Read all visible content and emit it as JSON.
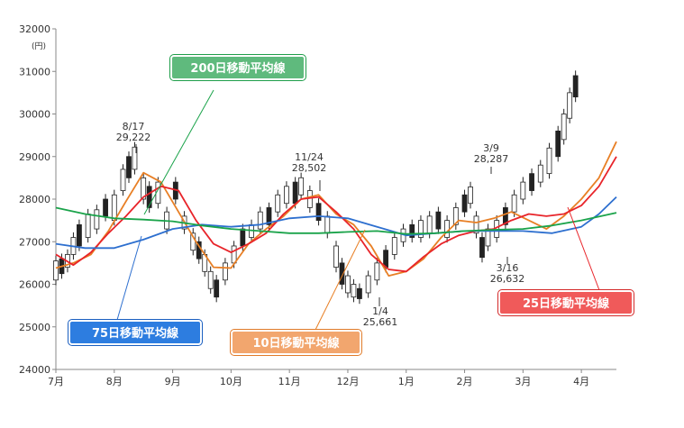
{
  "chart_data": {
    "type": "candlestick",
    "unit_label": "(円)",
    "ylim": [
      24000,
      32000
    ],
    "y_ticks": [
      "32000",
      "31000",
      "30000",
      "29000",
      "28000",
      "27000",
      "26000",
      "25000",
      "24000"
    ],
    "x_months": [
      "7月",
      "8月",
      "9月",
      "10月",
      "11月",
      "12月",
      "1月",
      "2月",
      "3月",
      "4月"
    ],
    "annotations": [
      {
        "date": "8/17",
        "value": "29,222"
      },
      {
        "date": "11/24",
        "value": "28,502"
      },
      {
        "date": "1/4",
        "value": "25,661"
      },
      {
        "date": "3/9",
        "value": "28,287"
      },
      {
        "date": "3/16",
        "value": "26,632"
      }
    ],
    "series": [
      {
        "name": "10日移動平均線",
        "color": "#e87f25",
        "values": [
          [
            0,
            26380
          ],
          [
            0.3,
            26500
          ],
          [
            0.6,
            26700
          ],
          [
            0.9,
            27250
          ],
          [
            1.2,
            27950
          ],
          [
            1.5,
            28620
          ],
          [
            1.8,
            28400
          ],
          [
            2.1,
            27700
          ],
          [
            2.4,
            27000
          ],
          [
            2.7,
            26400
          ],
          [
            3.0,
            26380
          ],
          [
            3.3,
            26950
          ],
          [
            3.6,
            27300
          ],
          [
            3.9,
            27600
          ],
          [
            4.2,
            28000
          ],
          [
            4.5,
            28100
          ],
          [
            4.8,
            27650
          ],
          [
            5.1,
            27400
          ],
          [
            5.4,
            26900
          ],
          [
            5.7,
            26200
          ],
          [
            6.0,
            26300
          ],
          [
            6.3,
            26600
          ],
          [
            6.6,
            27100
          ],
          [
            6.9,
            27500
          ],
          [
            7.2,
            27450
          ],
          [
            7.5,
            27550
          ],
          [
            7.8,
            27700
          ],
          [
            8.1,
            27500
          ],
          [
            8.4,
            27300
          ],
          [
            8.7,
            27600
          ],
          [
            9.0,
            28000
          ],
          [
            9.3,
            28500
          ],
          [
            9.6,
            29350
          ]
        ]
      },
      {
        "name": "25日移動平均線",
        "color": "#e8242a",
        "values": [
          [
            0,
            26700
          ],
          [
            0.3,
            26450
          ],
          [
            0.6,
            26750
          ],
          [
            0.9,
            27200
          ],
          [
            1.2,
            27600
          ],
          [
            1.5,
            28050
          ],
          [
            1.8,
            28300
          ],
          [
            2.1,
            28200
          ],
          [
            2.4,
            27500
          ],
          [
            2.7,
            26950
          ],
          [
            3.0,
            26750
          ],
          [
            3.3,
            26950
          ],
          [
            3.6,
            27200
          ],
          [
            3.9,
            27650
          ],
          [
            4.2,
            28000
          ],
          [
            4.5,
            28050
          ],
          [
            4.8,
            27700
          ],
          [
            5.1,
            27300
          ],
          [
            5.4,
            26700
          ],
          [
            5.7,
            26350
          ],
          [
            6.0,
            26300
          ],
          [
            6.3,
            26650
          ],
          [
            6.6,
            26950
          ],
          [
            6.9,
            27150
          ],
          [
            7.2,
            27250
          ],
          [
            7.5,
            27300
          ],
          [
            7.8,
            27500
          ],
          [
            8.1,
            27650
          ],
          [
            8.4,
            27600
          ],
          [
            8.7,
            27650
          ],
          [
            9.0,
            27850
          ],
          [
            9.3,
            28300
          ],
          [
            9.6,
            29000
          ]
        ]
      },
      {
        "name": "75日移動平均線",
        "color": "#2d6fcf",
        "values": [
          [
            0,
            26950
          ],
          [
            0.5,
            26850
          ],
          [
            1.0,
            26850
          ],
          [
            1.5,
            27050
          ],
          [
            2.0,
            27300
          ],
          [
            2.5,
            27400
          ],
          [
            3.0,
            27350
          ],
          [
            3.5,
            27400
          ],
          [
            4.0,
            27550
          ],
          [
            4.5,
            27600
          ],
          [
            5.0,
            27550
          ],
          [
            5.5,
            27350
          ],
          [
            6.0,
            27150
          ],
          [
            6.5,
            27200
          ],
          [
            7.0,
            27250
          ],
          [
            7.5,
            27250
          ],
          [
            8.0,
            27250
          ],
          [
            8.5,
            27200
          ],
          [
            9.0,
            27350
          ],
          [
            9.3,
            27650
          ],
          [
            9.6,
            28050
          ]
        ]
      },
      {
        "name": "200日移動平均線",
        "color": "#1aa34a",
        "values": [
          [
            0,
            27800
          ],
          [
            0.5,
            27650
          ],
          [
            1.0,
            27550
          ],
          [
            1.5,
            27520
          ],
          [
            2.0,
            27480
          ],
          [
            2.5,
            27380
          ],
          [
            3.0,
            27300
          ],
          [
            3.5,
            27250
          ],
          [
            4.0,
            27200
          ],
          [
            4.5,
            27200
          ],
          [
            5.0,
            27230
          ],
          [
            5.5,
            27250
          ],
          [
            6.0,
            27180
          ],
          [
            6.5,
            27200
          ],
          [
            7.0,
            27250
          ],
          [
            7.5,
            27280
          ],
          [
            8.0,
            27300
          ],
          [
            8.5,
            27380
          ],
          [
            9.0,
            27500
          ],
          [
            9.6,
            27680
          ]
        ]
      }
    ],
    "candles": [
      [
        0.0,
        26100,
        26550
      ],
      [
        0.1,
        26250,
        26600
      ],
      [
        0.2,
        26400,
        26700
      ],
      [
        0.3,
        26700,
        27100
      ],
      [
        0.4,
        26900,
        27400
      ],
      [
        0.55,
        27100,
        27650
      ],
      [
        0.7,
        27300,
        27750
      ],
      [
        0.85,
        27600,
        28000
      ],
      [
        1.0,
        27500,
        28100
      ],
      [
        1.15,
        28200,
        28700
      ],
      [
        1.25,
        28500,
        29000
      ],
      [
        1.35,
        28700,
        29222
      ],
      [
        1.5,
        28000,
        28500
      ],
      [
        1.6,
        27800,
        28300
      ],
      [
        1.75,
        27900,
        28400
      ],
      [
        1.9,
        27300,
        27700
      ],
      [
        2.05,
        28000,
        28400
      ],
      [
        2.2,
        27300,
        27600
      ],
      [
        2.35,
        26800,
        27200
      ],
      [
        2.45,
        26600,
        27000
      ],
      [
        2.55,
        26300,
        26700
      ],
      [
        2.65,
        25900,
        26300
      ],
      [
        2.75,
        25700,
        26100
      ],
      [
        2.9,
        26100,
        26500
      ],
      [
        3.05,
        26500,
        26900
      ],
      [
        3.2,
        26900,
        27300
      ],
      [
        3.35,
        27100,
        27400
      ],
      [
        3.5,
        27300,
        27700
      ],
      [
        3.65,
        27400,
        27800
      ],
      [
        3.8,
        27700,
        28100
      ],
      [
        3.95,
        27900,
        28300
      ],
      [
        4.1,
        27900,
        28400
      ],
      [
        4.2,
        28100,
        28502
      ],
      [
        4.35,
        27800,
        28200
      ],
      [
        4.5,
        27500,
        27900
      ],
      [
        4.65,
        27200,
        27600
      ],
      [
        4.8,
        26400,
        26900
      ],
      [
        4.9,
        26000,
        26500
      ],
      [
        5.0,
        25800,
        26200
      ],
      [
        5.1,
        25700,
        26000
      ],
      [
        5.2,
        25661,
        25900
      ],
      [
        5.35,
        25800,
        26200
      ],
      [
        5.5,
        26100,
        26500
      ],
      [
        5.65,
        26400,
        26800
      ],
      [
        5.8,
        26700,
        27100
      ],
      [
        5.95,
        27000,
        27300
      ],
      [
        6.1,
        27100,
        27400
      ],
      [
        6.25,
        27100,
        27500
      ],
      [
        6.4,
        27200,
        27600
      ],
      [
        6.55,
        27300,
        27700
      ],
      [
        6.7,
        27100,
        27500
      ],
      [
        6.85,
        27400,
        27800
      ],
      [
        7.0,
        27700,
        28100
      ],
      [
        7.1,
        27900,
        28287
      ],
      [
        7.2,
        27200,
        27600
      ],
      [
        7.3,
        26632,
        27100
      ],
      [
        7.4,
        26900,
        27300
      ],
      [
        7.55,
        27100,
        27500
      ],
      [
        7.7,
        27400,
        27800
      ],
      [
        7.85,
        27700,
        28100
      ],
      [
        8.0,
        28000,
        28400
      ],
      [
        8.15,
        28200,
        28600
      ],
      [
        8.3,
        28400,
        28800
      ],
      [
        8.45,
        28600,
        29200
      ],
      [
        8.6,
        29000,
        29600
      ],
      [
        8.7,
        29400,
        30000
      ],
      [
        8.8,
        29900,
        30500
      ],
      [
        8.9,
        30400,
        30900
      ]
    ]
  },
  "legend_labels": {
    "ma200": "200日移動平均線",
    "ma75": "75日移動平均線",
    "ma10": "10日移動平均線",
    "ma25": "25日移動平均線"
  }
}
